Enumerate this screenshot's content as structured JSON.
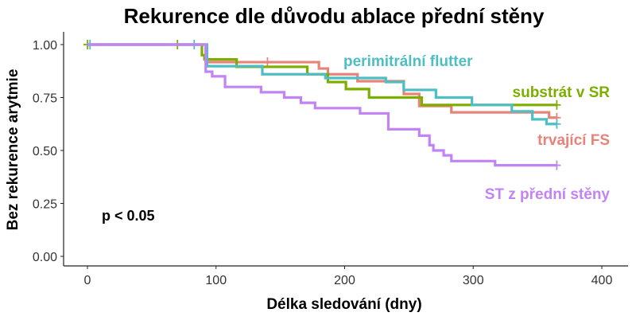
{
  "chart_data": {
    "type": "line",
    "subtype": "kaplan-meier-step",
    "title": "Rekurence dle důvodu ablace přední stěny",
    "xlabel": "Délka sledování (dny)",
    "ylabel": "Bez rekurence arytmie",
    "xlim": [
      -20,
      420
    ],
    "ylim": [
      0,
      1.04
    ],
    "xticks": [
      0,
      100,
      200,
      300,
      400
    ],
    "xtick_labels": [
      "0",
      "100",
      "200",
      "300",
      "400"
    ],
    "yticks": [
      0,
      0.25,
      0.5,
      0.75,
      1.0
    ],
    "ytick_labels": [
      "0.00",
      "0.25",
      "0.50",
      "0.75",
      "1.00"
    ],
    "grid": false,
    "annotation": "p < 0.05",
    "series": [
      {
        "name": "trvající FS",
        "color": "#E8837A",
        "steps": [
          [
            0,
            1.0
          ],
          [
            92,
            0.917
          ],
          [
            180,
            0.887
          ],
          [
            187,
            0.86
          ],
          [
            210,
            0.827
          ],
          [
            246,
            0.767
          ],
          [
            258,
            0.71
          ],
          [
            283,
            0.68
          ],
          [
            359,
            0.655
          ]
        ],
        "end": 365,
        "censored": [
          [
            140,
            0.917
          ],
          [
            365,
            0.655
          ]
        ]
      },
      {
        "name": "substrát v SR",
        "color": "#7CAE00",
        "steps": [
          [
            0,
            1.0
          ],
          [
            89,
            0.95
          ],
          [
            91,
            0.93
          ],
          [
            116,
            0.895
          ],
          [
            171,
            0.86
          ],
          [
            187,
            0.823
          ],
          [
            201,
            0.79
          ],
          [
            219,
            0.75
          ],
          [
            260,
            0.715
          ]
        ],
        "end": 365,
        "censored": [
          [
            0,
            1.0
          ],
          [
            70,
            1.0
          ],
          [
            365,
            0.715
          ]
        ]
      },
      {
        "name": "perimitrální flutter",
        "color": "#4DBEC3",
        "steps": [
          [
            0,
            1.0
          ],
          [
            93,
            0.898
          ],
          [
            136,
            0.86
          ],
          [
            185,
            0.842
          ],
          [
            232,
            0.823
          ],
          [
            246,
            0.786
          ],
          [
            271,
            0.75
          ],
          [
            299,
            0.715
          ],
          [
            330,
            0.685
          ],
          [
            346,
            0.647
          ],
          [
            357,
            0.625
          ]
        ],
        "end": 365,
        "censored": [
          [
            2,
            1.0
          ],
          [
            83,
            1.0
          ],
          [
            365,
            0.625
          ]
        ]
      },
      {
        "name": "ST z přední stěny",
        "color": "#C283F5",
        "steps": [
          [
            0,
            1.0
          ],
          [
            92,
            0.872
          ],
          [
            97,
            0.85
          ],
          [
            107,
            0.8
          ],
          [
            135,
            0.775
          ],
          [
            153,
            0.75
          ],
          [
            166,
            0.725
          ],
          [
            177,
            0.7
          ],
          [
            212,
            0.675
          ],
          [
            234,
            0.6
          ],
          [
            258,
            0.57
          ],
          [
            266,
            0.525
          ],
          [
            269,
            0.5
          ],
          [
            277,
            0.477
          ],
          [
            283,
            0.45
          ],
          [
            317,
            0.43
          ]
        ],
        "end": 365,
        "censored": [
          [
            365,
            0.43
          ]
        ]
      }
    ]
  }
}
